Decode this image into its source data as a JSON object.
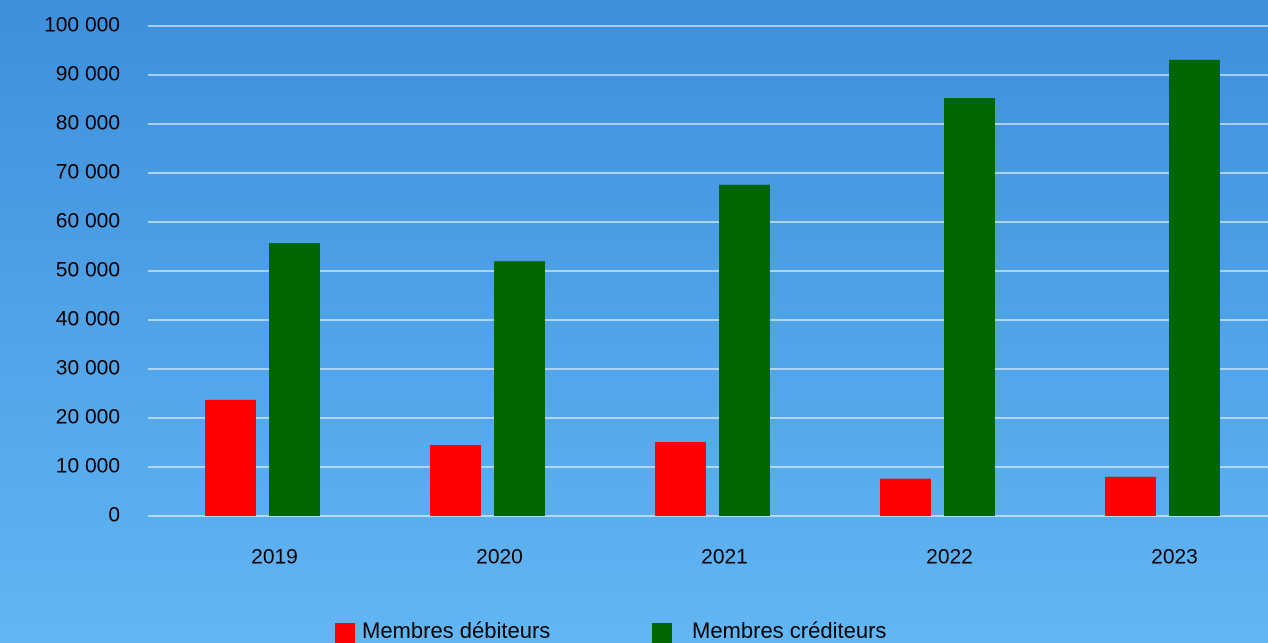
{
  "chart_data": {
    "type": "bar",
    "categories": [
      "2019",
      "2020",
      "2021",
      "2022",
      "2023"
    ],
    "series": [
      {
        "name": "Membres débiteurs",
        "color": "#ff0000",
        "values": [
          23700,
          14500,
          15100,
          7600,
          8000
        ]
      },
      {
        "name": "Membres créditeurs",
        "color": "#006600",
        "values": [
          55700,
          52000,
          67600,
          85300,
          93100
        ]
      }
    ],
    "ylim": [
      0,
      100000
    ],
    "yticks": [
      0,
      {
        "value": 10000,
        "label": "10 000"
      },
      {
        "value": 20000,
        "label": "20 000"
      },
      {
        "value": 30000,
        "label": "30 000"
      },
      {
        "value": 40000,
        "label": "40 000"
      },
      {
        "value": 50000,
        "label": "50 000"
      },
      {
        "value": 60000,
        "label": "60 000"
      },
      {
        "value": 70000,
        "label": "70 000"
      },
      {
        "value": 80000,
        "label": "80 000"
      },
      {
        "value": 90000,
        "label": "90 000"
      },
      {
        "value": 100000,
        "label": "100 000"
      }
    ],
    "grid": true,
    "legend": "bottom"
  }
}
